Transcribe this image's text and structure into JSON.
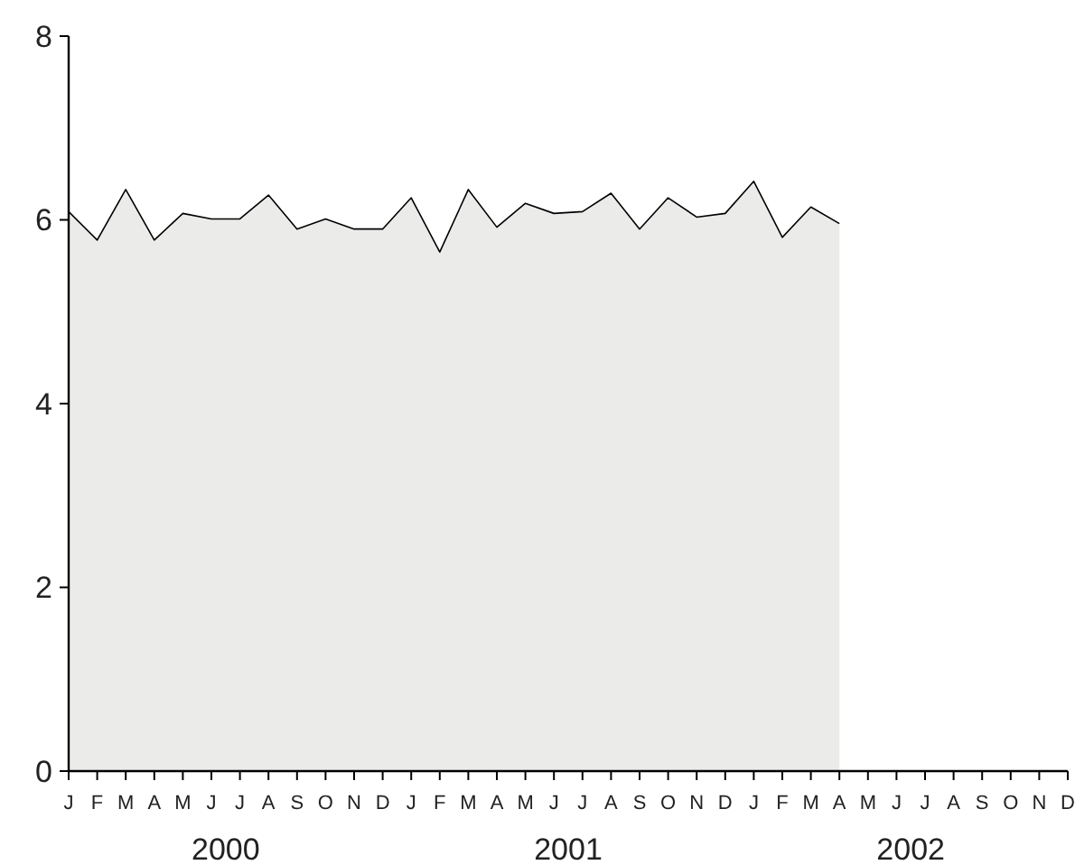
{
  "chart_data": {
    "type": "area",
    "categories": [
      "J",
      "F",
      "M",
      "A",
      "M",
      "J",
      "J",
      "A",
      "S",
      "O",
      "N",
      "D",
      "J",
      "F",
      "M",
      "A",
      "M",
      "J",
      "J",
      "A",
      "S",
      "O",
      "N",
      "D",
      "J",
      "F",
      "M",
      "A",
      "M",
      "J",
      "J",
      "A",
      "S",
      "O",
      "N",
      "D"
    ],
    "series": [
      {
        "color": "#ebecea",
        "values": [
          6.09,
          5.78,
          6.33,
          5.78,
          6.07,
          6.01,
          6.01,
          6.27,
          5.9,
          6.01,
          5.9,
          5.9,
          6.24,
          5.65,
          6.33,
          5.92,
          6.18,
          6.07,
          6.09,
          6.29,
          5.9,
          6.24,
          6.03,
          6.07,
          6.42,
          5.81,
          6.14,
          5.96,
          null,
          null,
          null,
          null,
          null,
          null,
          null,
          null
        ]
      }
    ],
    "ylim": [
      0,
      8
    ],
    "yticks": [
      0,
      2,
      4,
      6,
      8
    ],
    "annotations": [
      "2000",
      "2001",
      "2002"
    ]
  }
}
